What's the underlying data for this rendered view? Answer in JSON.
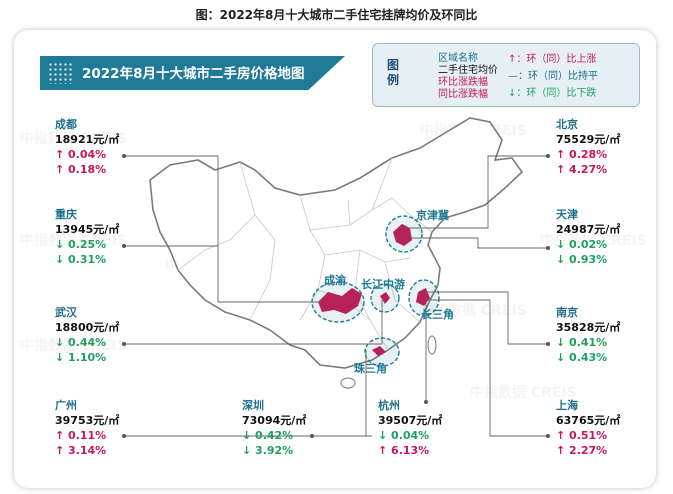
{
  "figure_title": "图：2022年8月十大城市二手住宅挂牌均价及环同比",
  "map_title": "2022年8月十大城市二手房价格地图",
  "legend": {
    "heading": "图例",
    "name_lines": [
      "区域名称",
      "二手住宅均价",
      "环比涨跌幅",
      "同比涨跌幅"
    ],
    "up": "↑：环（同）比上涨",
    "flat": "—：环（同）比持平",
    "down": "↓：环（同）比下跌"
  },
  "watermark": "中指数据 CREIS",
  "regions": {
    "jjj": "京津冀",
    "cy": "成渝",
    "cj": "长江中游",
    "csj": "长三角",
    "zsj": "珠三角"
  },
  "cities": [
    {
      "key": "chengdu",
      "name": "成都",
      "price": "18921元/㎡",
      "mom": "↑ 0.04%",
      "yoy": "↑ 0.18%",
      "mom_dir": "up",
      "yoy_dir": "up"
    },
    {
      "key": "chongqing",
      "name": "重庆",
      "price": "13945元/㎡",
      "mom": "↓ 0.25%",
      "yoy": "↓ 0.31%",
      "mom_dir": "down",
      "yoy_dir": "down"
    },
    {
      "key": "wuhan",
      "name": "武汉",
      "price": "18800元/㎡",
      "mom": "↓ 0.44%",
      "yoy": "↓ 1.10%",
      "mom_dir": "down",
      "yoy_dir": "down"
    },
    {
      "key": "guangzhou",
      "name": "广州",
      "price": "39753元/㎡",
      "mom": "↑ 0.11%",
      "yoy": "↑ 3.14%",
      "mom_dir": "up",
      "yoy_dir": "up"
    },
    {
      "key": "shenzhen",
      "name": "深圳",
      "price": "73094元/㎡",
      "mom": "↓ 0.42%",
      "yoy": "↓ 3.92%",
      "mom_dir": "down",
      "yoy_dir": "down"
    },
    {
      "key": "hangzhou",
      "name": "杭州",
      "price": "39507元/㎡",
      "mom": "↓ 0.04%",
      "yoy": "↑ 6.13%",
      "mom_dir": "down",
      "yoy_dir": "up"
    },
    {
      "key": "shanghai",
      "name": "上海",
      "price": "63765元/㎡",
      "mom": "↑ 0.51%",
      "yoy": "↑ 2.27%",
      "mom_dir": "up",
      "yoy_dir": "up"
    },
    {
      "key": "beijing",
      "name": "北京",
      "price": "75529元/㎡",
      "mom": "↑ 0.28%",
      "yoy": "↑ 4.27%",
      "mom_dir": "up",
      "yoy_dir": "up"
    },
    {
      "key": "tianjin",
      "name": "天津",
      "price": "24987元/㎡",
      "mom": "↓ 0.02%",
      "yoy": "↓ 0.93%",
      "mom_dir": "down",
      "yoy_dir": "down"
    },
    {
      "key": "nanjing",
      "name": "南京",
      "price": "35828元/㎡",
      "mom": "↓ 0.41%",
      "yoy": "↓ 0.43%",
      "mom_dir": "down",
      "yoy_dir": "down"
    }
  ],
  "colors": {
    "up": "#c8175d",
    "down": "#1fa060",
    "accent": "#1f7a98",
    "highlight": "#c8194f"
  }
}
